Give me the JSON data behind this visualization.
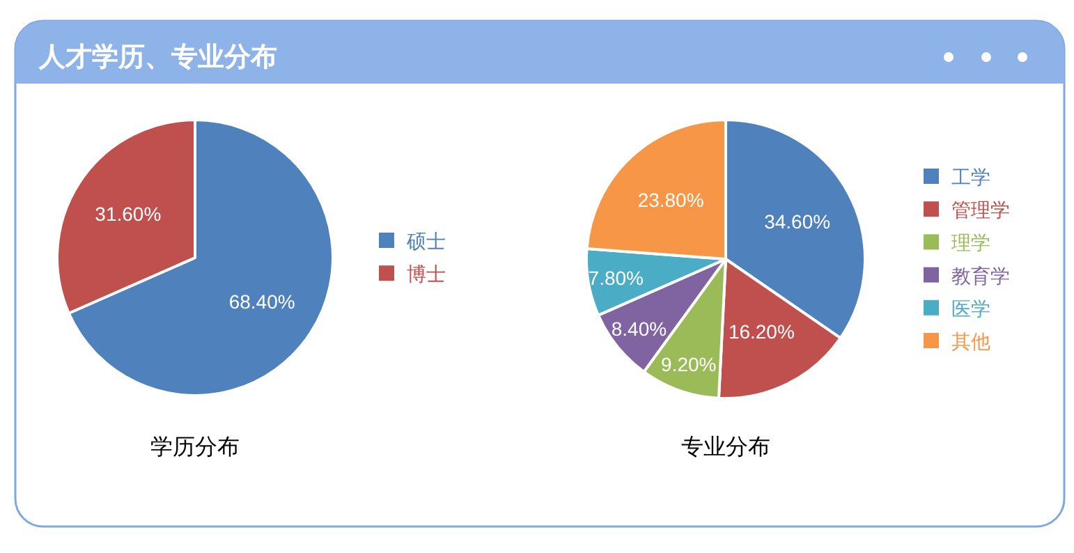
{
  "chart_data": [
    {
      "type": "other",
      "title": "人才学历、专业分布"
    },
    {
      "type": "pie",
      "title": "学历分布",
      "categories": [
        "硕士",
        "博士"
      ],
      "values": [
        68.4,
        31.6
      ],
      "value_labels": [
        "68.40%",
        "31.60%"
      ],
      "colors": [
        "#4f81bd",
        "#c0504d"
      ],
      "legend": "right"
    },
    {
      "type": "pie",
      "title": "专业分布",
      "categories": [
        "工学",
        "管理学",
        "理学",
        "教育学",
        "医学",
        "其他"
      ],
      "values": [
        34.6,
        16.2,
        9.2,
        8.4,
        7.8,
        23.8
      ],
      "value_labels": [
        "34.60%",
        "16.20%",
        "9.20%",
        "8.40%",
        "7.80%",
        "23.80%"
      ],
      "colors": [
        "#4f81bd",
        "#c0504d",
        "#9bbb59",
        "#8064a2",
        "#4bacc6",
        "#f79646"
      ],
      "legend": "right"
    }
  ]
}
